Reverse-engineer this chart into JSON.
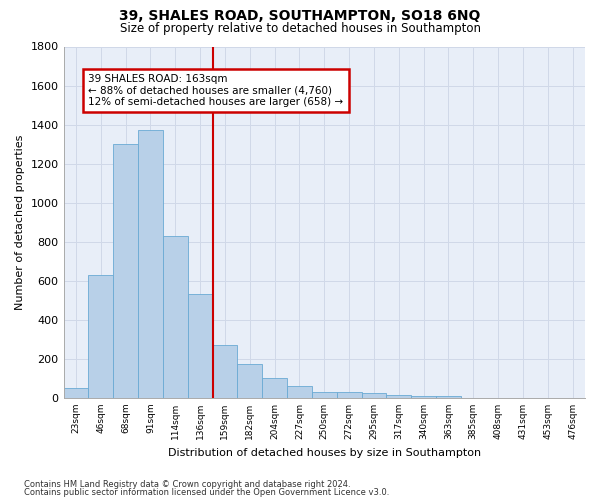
{
  "title": "39, SHALES ROAD, SOUTHAMPTON, SO18 6NQ",
  "subtitle": "Size of property relative to detached houses in Southampton",
  "xlabel": "Distribution of detached houses by size in Southampton",
  "ylabel": "Number of detached properties",
  "categories": [
    "23sqm",
    "46sqm",
    "68sqm",
    "91sqm",
    "114sqm",
    "136sqm",
    "159sqm",
    "182sqm",
    "204sqm",
    "227sqm",
    "250sqm",
    "272sqm",
    "295sqm",
    "317sqm",
    "340sqm",
    "363sqm",
    "385sqm",
    "408sqm",
    "431sqm",
    "453sqm",
    "476sqm"
  ],
  "values": [
    50,
    630,
    1300,
    1370,
    830,
    530,
    270,
    175,
    100,
    60,
    30,
    30,
    25,
    15,
    10,
    10,
    0,
    0,
    0,
    0,
    0
  ],
  "bar_color": "#b8d0e8",
  "bar_edge_color": "#6aaad4",
  "annotation_text_line1": "39 SHALES ROAD: 163sqm",
  "annotation_text_line2": "← 88% of detached houses are smaller (4,760)",
  "annotation_text_line3": "12% of semi-detached houses are larger (658) →",
  "annotation_box_color": "#ffffff",
  "annotation_box_edge": "#cc0000",
  "vertical_line_color": "#cc0000",
  "grid_color": "#d0d8e8",
  "footnote1": "Contains HM Land Registry data © Crown copyright and database right 2024.",
  "footnote2": "Contains public sector information licensed under the Open Government Licence v3.0.",
  "ylim": [
    0,
    1800
  ],
  "yticks": [
    0,
    200,
    400,
    600,
    800,
    1000,
    1200,
    1400,
    1600,
    1800
  ],
  "background_color": "#ffffff",
  "plot_background": "#e8eef8"
}
